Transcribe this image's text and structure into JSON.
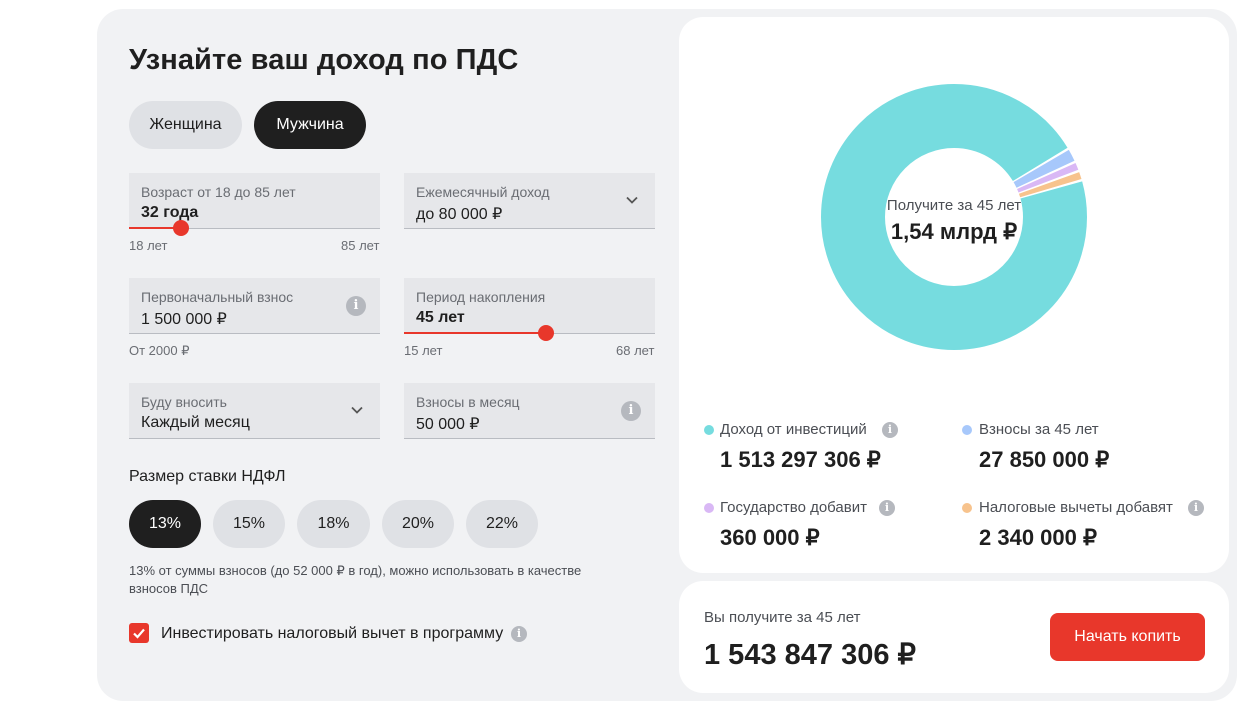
{
  "title": "Узнайте ваш доход по ПДС",
  "gender": {
    "female": "Женщина",
    "male": "Мужчина",
    "selected": "Мужчина"
  },
  "age": {
    "label": "Возраст от 18 до 85 лет",
    "value": "32 года",
    "min": "18 лет",
    "max": "85 лет",
    "level": 0.21
  },
  "income": {
    "label": "Ежемесячный доход",
    "value": "до 80 000 ₽"
  },
  "initial": {
    "label": "Первоначальный взнос",
    "value": "1 500 000 ₽",
    "hint": "От 2000 ₽"
  },
  "period": {
    "label": "Период накопления",
    "value": "45 лет",
    "min": "15 лет",
    "max": "68 лет",
    "level": 0.57
  },
  "frequency": {
    "label": "Буду вносить",
    "value": "Каждый месяц"
  },
  "monthly": {
    "label": "Взносы в месяц",
    "value": "50 000 ₽"
  },
  "ndfl": {
    "label": "Размер ставки НДФЛ",
    "options": [
      "13%",
      "15%",
      "18%",
      "20%",
      "22%"
    ],
    "selected": "13%",
    "note": "13% от суммы взносов (до 52 000 ₽ в год), можно использовать в качестве взносов ПДС"
  },
  "reinvest": {
    "label": "Инвестировать налоговый вычет в программу",
    "checked": true
  },
  "donut": {
    "caption": "Получите за 45 лет",
    "total": "1,54 млрд ₽",
    "segments": [
      {
        "name": "Доход от инвестиций",
        "value": 1513297306,
        "color": "#76dcdf"
      },
      {
        "name": "Взносы за 45 лет",
        "value": 27850000,
        "color": "#a7c8fb"
      },
      {
        "name": "Государство добавит",
        "value": 360000,
        "color": "#d9b8f5"
      },
      {
        "name": "Налоговые вычеты добавят",
        "value": 2340000,
        "color": "#f7c38d"
      }
    ]
  },
  "legend": [
    {
      "label": "Доход от инвестиций",
      "value": "1 513 297 306 ₽",
      "color": "#76dcdf",
      "info": true
    },
    {
      "label": "Взносы за 45 лет",
      "value": "27 850 000 ₽",
      "color": "#a7c8fb",
      "info": false
    },
    {
      "label": "Государство добавит",
      "value": "360 000 ₽",
      "color": "#d9b8f5",
      "info": true
    },
    {
      "label": "Налоговые вычеты добавят",
      "value": "2 340 000 ₽",
      "color": "#f7c38d",
      "info": true
    }
  ],
  "summary": {
    "label": "Вы получите за 45 лет",
    "value": "1 543 847 306 ₽",
    "button": "Начать копить"
  },
  "accent": "#e8372b"
}
